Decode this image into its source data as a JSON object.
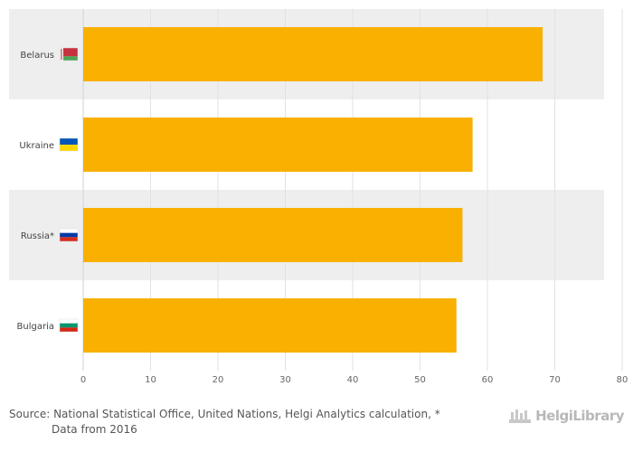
{
  "chart_data": {
    "type": "bar",
    "orientation": "horizontal",
    "categories": [
      "Belarus",
      "Ukraine",
      "Russia*",
      "Bulgaria"
    ],
    "values": [
      68.2,
      57.8,
      56.3,
      55.4
    ],
    "xlim": [
      0,
      80
    ],
    "xticks": [
      0,
      10,
      20,
      30,
      40,
      50,
      60,
      70,
      80
    ],
    "grid": true,
    "legend": "none",
    "bar_color": "#F9B000",
    "band_color": "#EEEEEE"
  },
  "flags": [
    {
      "country": "Belarus",
      "icon": "belarus-flag-icon",
      "stripes": [
        "#C8313E",
        "#C8313E",
        "#4AA657"
      ]
    },
    {
      "country": "Ukraine",
      "icon": "ukraine-flag-icon",
      "stripes": [
        "#0057B7",
        "#FFD700"
      ]
    },
    {
      "country": "Russia*",
      "icon": "russia-flag-icon",
      "stripes": [
        "#FFFFFF",
        "#0039A6",
        "#D52B1E"
      ]
    },
    {
      "country": "Bulgaria",
      "icon": "bulgaria-flag-icon",
      "stripes": [
        "#FFFFFF",
        "#00966E",
        "#D62612"
      ]
    }
  ],
  "footer": {
    "source": "Source: National Statistical Office, United Nations, Helgi Analytics calculation, *",
    "note": "Data from 2016"
  },
  "brand": {
    "name": "HelgiLibrary",
    "icon": "helgi-logo-icon"
  }
}
